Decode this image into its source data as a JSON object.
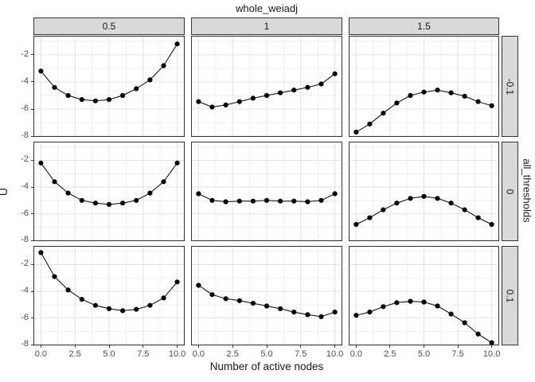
{
  "title": "whole_weiadj",
  "axes": {
    "x_title": "Number of active nodes",
    "y_title": "U",
    "x_tick_labels": [
      "0.0",
      "2.5",
      "5.0",
      "7.5",
      "10.0"
    ],
    "y_tick_labels": [
      "-2",
      "-4",
      "-6",
      "-8"
    ]
  },
  "facets": {
    "col_title": "whole_weiadj",
    "col_values": [
      "0.5",
      "1",
      "1.5"
    ],
    "row_title": "all_thresholds",
    "row_values": [
      "-0.1",
      "0",
      "0.1"
    ]
  },
  "chart_data": {
    "type": "line",
    "xlabel": "Number of active nodes",
    "ylabel": "U",
    "facet_col_var": "whole_weiadj",
    "facet_row_var": "all_thresholds",
    "x": [
      0,
      1,
      2,
      3,
      4,
      5,
      6,
      7,
      8,
      9,
      10
    ],
    "x_domain": [
      -0.55,
      10.55
    ],
    "y_domain": [
      -0.6,
      -8.05
    ],
    "x_major": [
      0,
      2.5,
      5,
      7.5,
      10
    ],
    "x_minor": [
      1.25,
      3.75,
      6.25,
      8.75
    ],
    "y_major": [
      -2,
      -4,
      -6,
      -8
    ],
    "y_minor": [
      -1,
      -3,
      -5,
      -7
    ],
    "grid": true,
    "panels": [
      {
        "row": "-0.1",
        "col": "0.5",
        "values": [
          -3.2,
          -4.4,
          -5.0,
          -5.3,
          -5.4,
          -5.3,
          -5.0,
          -4.5,
          -3.85,
          -2.8,
          -1.2
        ]
      },
      {
        "row": "-0.1",
        "col": "1",
        "values": [
          -5.45,
          -5.85,
          -5.7,
          -5.45,
          -5.2,
          -5.0,
          -4.8,
          -4.6,
          -4.4,
          -4.15,
          -3.4
        ]
      },
      {
        "row": "-0.1",
        "col": "1.5",
        "values": [
          -7.7,
          -7.1,
          -6.3,
          -5.55,
          -5.0,
          -4.75,
          -4.6,
          -4.8,
          -5.05,
          -5.45,
          -5.75
        ]
      },
      {
        "row": "0",
        "col": "0.5",
        "values": [
          -2.2,
          -3.6,
          -4.45,
          -5.0,
          -5.2,
          -5.3,
          -5.2,
          -5.0,
          -4.45,
          -3.6,
          -2.2
        ]
      },
      {
        "row": "0",
        "col": "1",
        "values": [
          -4.5,
          -5.0,
          -5.1,
          -5.05,
          -5.05,
          -5.0,
          -5.05,
          -5.05,
          -5.1,
          -5.0,
          -4.5
        ]
      },
      {
        "row": "0",
        "col": "1.5",
        "values": [
          -6.8,
          -6.3,
          -5.7,
          -5.2,
          -4.85,
          -4.7,
          -4.85,
          -5.2,
          -5.7,
          -6.3,
          -6.8
        ]
      },
      {
        "row": "0.1",
        "col": "0.5",
        "values": [
          -1.1,
          -2.9,
          -3.9,
          -4.6,
          -5.05,
          -5.3,
          -5.45,
          -5.35,
          -5.05,
          -4.5,
          -3.3
        ]
      },
      {
        "row": "0.1",
        "col": "1",
        "values": [
          -3.55,
          -4.25,
          -4.55,
          -4.7,
          -4.9,
          -5.1,
          -5.3,
          -5.55,
          -5.75,
          -5.9,
          -5.55
        ]
      },
      {
        "row": "0.1",
        "col": "1.5",
        "values": [
          -5.8,
          -5.55,
          -5.15,
          -4.85,
          -4.75,
          -4.8,
          -5.1,
          -5.7,
          -6.35,
          -7.2,
          -7.85
        ]
      }
    ]
  },
  "colors": {
    "strip_fill": "#d9d9d9",
    "strip_border": "#333333",
    "panel_border": "#333333",
    "panel_bg": "#ffffff",
    "grid_major": "#e2e2e2",
    "grid_minor": "#efefef",
    "line": "#000000",
    "point": "#000000",
    "axis_text": "#4d4d4d",
    "title_text": "#1a1a1a"
  }
}
